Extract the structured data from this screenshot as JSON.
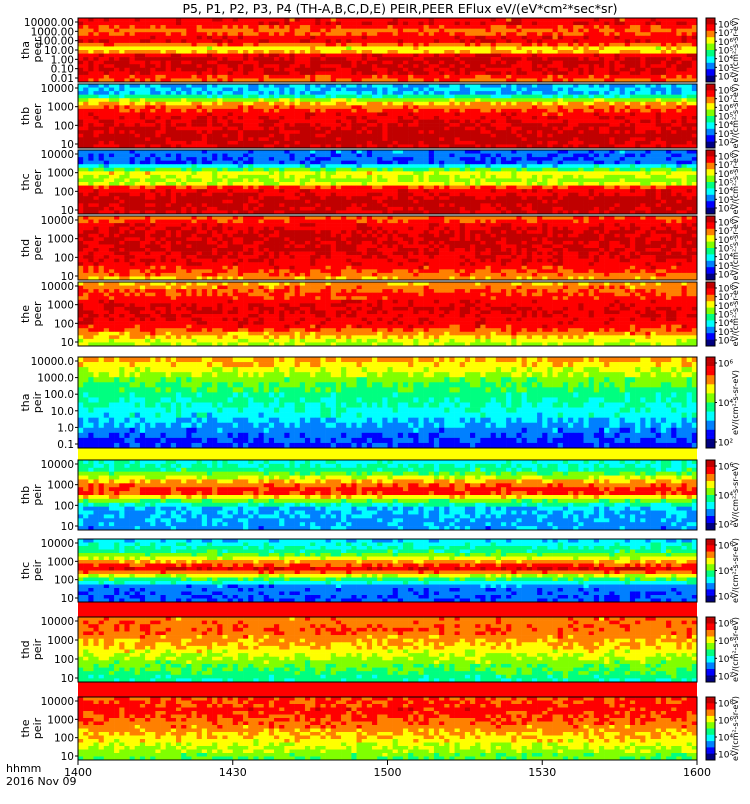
{
  "chart_data": {
    "type": "heatmap",
    "title": "P5, P1, P2, P3, P4 (TH-A,B,C,D,E) PEIR,PEER EFlux eV/(eV*cm²*sec*sr)",
    "x": {
      "tick_labels": [
        "1400",
        "1430",
        "1500",
        "1530",
        "1600"
      ],
      "tick_minutes": [
        0,
        30,
        60,
        90,
        120
      ],
      "label_line1": "hhmm",
      "label_line2": "2016 Nov 09"
    },
    "panels": [
      {
        "id": "tha-peer",
        "probe": "tha",
        "instrument": "peer",
        "y_ticks": [
          "10000.00",
          "1000.00",
          "100.00",
          "10.00",
          "1.00",
          "0.10",
          "0.01"
        ],
        "colorbar_ticks": [
          "10⁸",
          "10⁷",
          "10⁶",
          "10⁵",
          "10⁴",
          "10³",
          "10²"
        ],
        "colorbar_title": "eV/(cm²-s-sr-eV)"
      },
      {
        "id": "thb-peer",
        "probe": "thb",
        "instrument": "peer",
        "y_ticks": [
          "10000",
          "1000",
          "100",
          "10"
        ],
        "colorbar_ticks": [
          "10⁸",
          "10⁷",
          "10⁶",
          "10⁵",
          "10⁴",
          "10³",
          "10²"
        ],
        "colorbar_title": "eV/(cm²-s-sr-eV)"
      },
      {
        "id": "thc-peer",
        "probe": "thc",
        "instrument": "peer",
        "y_ticks": [
          "10000",
          "1000",
          "100",
          "10"
        ],
        "colorbar_ticks": [
          "10⁸",
          "10⁷",
          "10⁶",
          "10⁵",
          "10⁴",
          "10³",
          "10²"
        ],
        "colorbar_title": "eV/(cm²-s-sr-eV)"
      },
      {
        "id": "thd-peer",
        "probe": "thd",
        "instrument": "peer",
        "y_ticks": [
          "10000",
          "1000",
          "100",
          "10"
        ],
        "colorbar_ticks": [
          "10⁸",
          "10⁷",
          "10⁶",
          "10⁵",
          "10⁴",
          "10³",
          "10²"
        ],
        "colorbar_title": "eV/(cm²-s-sr-eV)"
      },
      {
        "id": "the-peer",
        "probe": "the",
        "instrument": "peer",
        "y_ticks": [
          "10000",
          "1000",
          "100",
          "10"
        ],
        "colorbar_ticks": [
          "10⁸",
          "10⁷",
          "10⁶",
          "10⁵",
          "10⁴",
          "10³",
          "10²"
        ],
        "colorbar_title": "eV/(cm²-s-sr-eV)"
      },
      {
        "id": "tha-peir",
        "probe": "tha",
        "instrument": "peir",
        "y_ticks": [
          "10000.0",
          "1000.0",
          "100.0",
          "10.0",
          "1.0",
          "0.1"
        ],
        "colorbar_ticks": [
          "10⁶",
          "10⁴",
          "10²"
        ],
        "colorbar_title": "eV/(cm²-s-sr-eV)"
      },
      {
        "id": "thb-peir",
        "probe": "thb",
        "instrument": "peir",
        "y_ticks": [
          "10000",
          "1000",
          "100",
          "10"
        ],
        "colorbar_ticks": [
          "10⁶",
          "10⁴",
          "10²"
        ],
        "colorbar_title": "eV/(cm²-s-sr-eV)"
      },
      {
        "id": "thc-peir",
        "probe": "thc",
        "instrument": "peir",
        "y_ticks": [
          "10000",
          "1000",
          "100",
          "10"
        ],
        "colorbar_ticks": [
          "10⁶",
          "10⁴",
          "10²"
        ],
        "colorbar_title": "eV/(cm²-s-sr-eV)"
      },
      {
        "id": "thd-peir",
        "probe": "thd",
        "instrument": "peir",
        "y_ticks": [
          "10000",
          "1000",
          "100",
          "10"
        ],
        "colorbar_ticks": [
          "10⁸",
          "10⁶",
          "10⁴",
          "10²"
        ],
        "colorbar_title": "eV/(cm²-s-sr-eV)"
      },
      {
        "id": "the-peir",
        "probe": "the",
        "instrument": "peir",
        "y_ticks": [
          "10000",
          "1000",
          "100",
          "10"
        ],
        "colorbar_ticks": [
          "10⁸",
          "10⁶",
          "10⁴",
          "10²"
        ],
        "colorbar_title": "eV/(cm²-s-sr-eV)"
      }
    ],
    "colorscale": [
      "#000080",
      "#0000ff",
      "#0080ff",
      "#00ffff",
      "#00ff80",
      "#80ff00",
      "#ffff00",
      "#ff8000",
      "#ff0000",
      "#c00000"
    ]
  }
}
